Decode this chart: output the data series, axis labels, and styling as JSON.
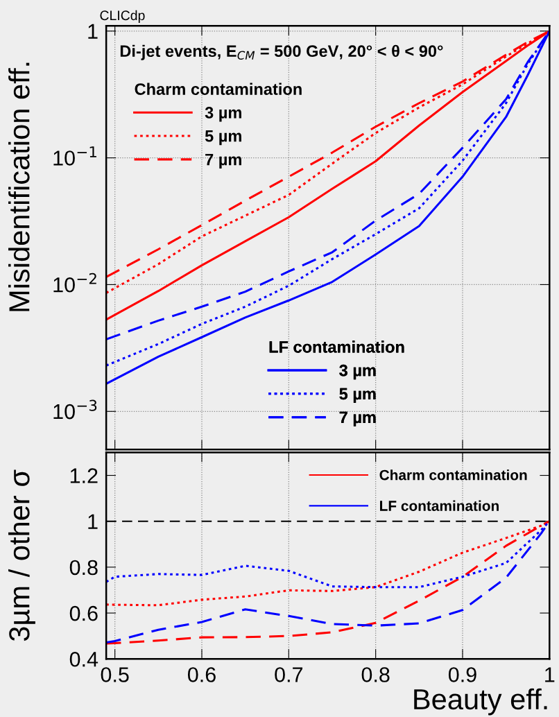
{
  "chart_data": [
    {
      "type": "line",
      "ylabel": "Misidentification eff.",
      "log": "y",
      "grid": true,
      "tick_labels": "y",
      "annotations": [
        "CLICdp",
        "Di-jet events, E$_{CM}$ = 500 GeV, 20° < θ < 90°"
      ],
      "legend_title": [
        "Charm contamination",
        "LF contamination"
      ],
      "legend": [
        "top left",
        "bottom"
      ],
      "xlim": [
        0.49,
        1.0
      ],
      "xticks": [
        0.5,
        0.6,
        0.7,
        0.8,
        0.9,
        1.0
      ],
      "ylim": [
        0.0005,
        1.1
      ],
      "yticks": [
        {
          "value": 0.001,
          "label": "10$^{−3}$"
        },
        {
          "value": 0.01,
          "label": "10$^{−2}$"
        },
        {
          "value": 0.1,
          "label": "10$^{−1}$"
        },
        {
          "value": 1,
          "label": "1"
        }
      ],
      "x": [
        0.49,
        0.55,
        0.6,
        0.65,
        0.7,
        0.75,
        0.8,
        0.85,
        0.9,
        0.95,
        0.975,
        1.0
      ],
      "series": [
        {
          "name": "3 µm",
          "color": "#ff0000",
          "line_style": "solid",
          "values": [
            0.0053,
            0.0089,
            0.0142,
            0.022,
            0.034,
            0.057,
            0.094,
            0.18,
            0.33,
            0.58,
            0.77,
            1.0
          ]
        },
        {
          "name": "5 µm",
          "color": "#ff0000",
          "line_style": "dotted",
          "values": [
            0.0086,
            0.0145,
            0.024,
            0.035,
            0.051,
            0.09,
            0.157,
            0.25,
            0.38,
            0.63,
            0.8,
            1.0
          ]
        },
        {
          "name": "7 µm",
          "color": "#ff0000",
          "line_style": "dashed",
          "values": [
            0.0115,
            0.019,
            0.0295,
            0.046,
            0.071,
            0.11,
            0.176,
            0.27,
            0.4,
            0.65,
            0.82,
            1.0
          ]
        },
        {
          "name": "3 µm",
          "color": "#0000ff",
          "line_style": "solid",
          "values": [
            0.00165,
            0.0027,
            0.00385,
            0.0055,
            0.0075,
            0.0105,
            0.0173,
            0.029,
            0.071,
            0.21,
            0.45,
            1.0
          ]
        },
        {
          "name": "5 µm",
          "color": "#0000ff",
          "line_style": "dotted",
          "values": [
            0.0023,
            0.0034,
            0.0049,
            0.0067,
            0.0098,
            0.0159,
            0.025,
            0.04,
            0.095,
            0.27,
            0.55,
            1.0
          ]
        },
        {
          "name": "7 µm",
          "color": "#0000ff",
          "line_style": "dashed",
          "values": [
            0.0037,
            0.0052,
            0.0067,
            0.0088,
            0.0127,
            0.018,
            0.032,
            0.052,
            0.12,
            0.29,
            0.57,
            1.0
          ]
        }
      ]
    },
    {
      "type": "line",
      "xlabel": "Beauty eff.",
      "ylabel": "3µm / other σ",
      "grid": "x",
      "legend": "top right",
      "xlim": [
        0.49,
        1.0
      ],
      "xticks": [
        0.5,
        0.6,
        0.7,
        0.8,
        0.9,
        1
      ],
      "ylim": [
        0.4,
        1.3
      ],
      "yticks": [
        0.4,
        0.6,
        0.8,
        1,
        1.2
      ],
      "ref_lines": [
        {
          "axis": "y",
          "value": 1,
          "label": null,
          "color": "#000000",
          "line_style": "dashed"
        }
      ],
      "x": [
        0.49,
        0.5,
        0.55,
        0.6,
        0.65,
        0.7,
        0.75,
        0.8,
        0.85,
        0.9,
        0.95,
        0.99,
        1.0
      ],
      "series": [
        {
          "name": "Charm contamination",
          "color": "#ff0000",
          "line_style": "dotted",
          "values": [
            0.637,
            0.636,
            0.634,
            0.658,
            0.672,
            0.699,
            0.696,
            0.713,
            0.78,
            0.863,
            0.927,
            0.98,
            1.0
          ]
        },
        {
          "color": "#ff0000",
          "line_style": "dashed",
          "values": [
            0.467,
            0.469,
            0.48,
            0.494,
            0.495,
            0.5,
            0.516,
            0.557,
            0.654,
            0.758,
            0.893,
            0.98,
            1.0
          ]
        },
        {
          "name": "LF contamination",
          "color": "#0000ff",
          "line_style": "dotted",
          "values": [
            0.736,
            0.758,
            0.77,
            0.766,
            0.806,
            0.784,
            0.716,
            0.713,
            0.713,
            0.758,
            0.818,
            0.96,
            1.0
          ]
        },
        {
          "color": "#0000ff",
          "line_style": "dashed",
          "values": [
            0.472,
            0.478,
            0.527,
            0.561,
            0.616,
            0.587,
            0.552,
            0.545,
            0.555,
            0.613,
            0.754,
            0.945,
            1.0
          ]
        }
      ]
    }
  ]
}
